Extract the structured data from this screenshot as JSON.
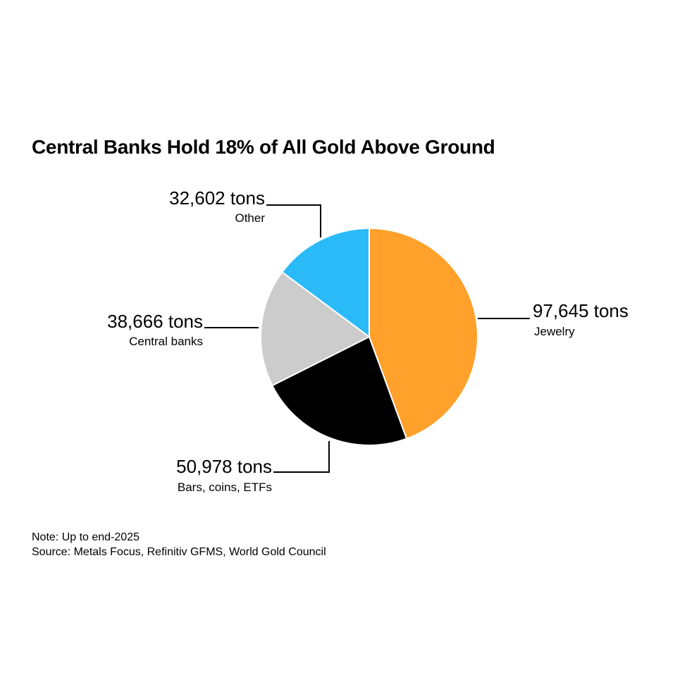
{
  "header": {
    "title": "Central Banks Hold 18% of All Gold Above Ground"
  },
  "footer": {
    "note": "Note: Up to end-2025",
    "source": "Source: Metals Focus, Refinitiv GFMS, World Gold Council"
  },
  "chart_data": {
    "type": "pie",
    "title": "Central Banks Hold 18% of All Gold Above Ground",
    "unit": "tons",
    "slices": [
      {
        "name": "Jewelry",
        "value": 97645,
        "value_label": "97,645 tons",
        "color": "#FFA12B"
      },
      {
        "name": "Bars, coins, ETFs",
        "value": 50978,
        "value_label": "50,978 tons",
        "color": "#000000"
      },
      {
        "name": "Central banks",
        "value": 38666,
        "value_label": "38,666 tons",
        "color": "#CCCCCC"
      },
      {
        "name": "Other",
        "value": 32602,
        "value_label": "32,602 tons",
        "color": "#2BBAF8"
      }
    ]
  }
}
